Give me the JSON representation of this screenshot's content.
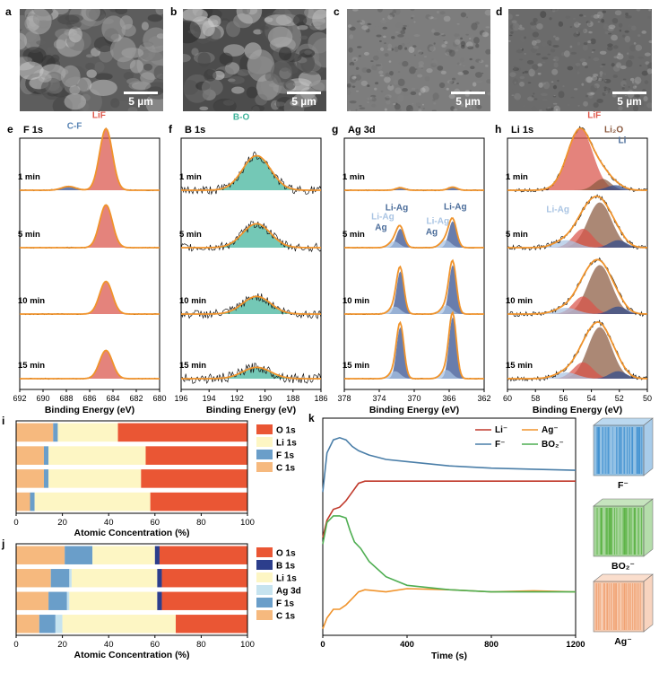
{
  "panel_letters": [
    "a",
    "b",
    "c",
    "d",
    "e",
    "f",
    "g",
    "h",
    "i",
    "j",
    "k"
  ],
  "sem": {
    "scale_text": "5 µm",
    "panels": [
      {
        "id": "a",
        "tone": "#5d5d5d",
        "texture": "dense"
      },
      {
        "id": "b",
        "tone": "#4c4c4c",
        "texture": "rough"
      },
      {
        "id": "c",
        "tone": "#7d7d7d",
        "texture": "smooth"
      },
      {
        "id": "d",
        "tone": "#6b6b6b",
        "texture": "smooth"
      }
    ]
  },
  "xps": {
    "times": [
      "1 min",
      "5 min",
      "10 min",
      "15 min"
    ],
    "xlabel": "Binding Energy (eV)",
    "colors": {
      "envelope": "#f0932b",
      "raw": "#111111",
      "red": "#d9534a",
      "navy": "#2f4b8c",
      "teal": "#3fb39a",
      "brown": "#8b5a40",
      "lightblue": "#a9c4e3"
    },
    "panels": [
      {
        "id": "F 1s",
        "xlim": [
          692,
          680
        ],
        "ticks": [
          692,
          690,
          688,
          686,
          684,
          682,
          680
        ],
        "annotations": [
          {
            "text": "LiF",
            "color": "#e0594c",
            "x": 685.2,
            "row": 0,
            "dy": -2
          },
          {
            "text": "C-F",
            "color": "#5b86b5",
            "x": 687.3,
            "row": 0,
            "dy": 10
          }
        ],
        "rows": [
          {
            "peaks": [
              {
                "center": 684.6,
                "height": 0.98,
                "width": 0.55,
                "color": "red"
              },
              {
                "center": 687.8,
                "height": 0.06,
                "width": 0.6,
                "color": "navy"
              }
            ],
            "noise": 0.01
          },
          {
            "peaks": [
              {
                "center": 684.6,
                "height": 0.68,
                "width": 0.55,
                "color": "red"
              }
            ],
            "noise": 0.01
          },
          {
            "peaks": [
              {
                "center": 684.6,
                "height": 0.52,
                "width": 0.55,
                "color": "red"
              }
            ],
            "noise": 0.01
          },
          {
            "peaks": [
              {
                "center": 684.6,
                "height": 0.45,
                "width": 0.55,
                "color": "red"
              }
            ],
            "noise": 0.01
          }
        ]
      },
      {
        "id": "B 1s",
        "xlim": [
          196,
          186
        ],
        "ticks": [
          196,
          194,
          192,
          190,
          188,
          186
        ],
        "annotations": [
          {
            "text": "B-O",
            "color": "#3fb39a",
            "x": 191.7,
            "row": 0,
            "dy": 0
          }
        ],
        "rows": [
          {
            "peaks": [
              {
                "center": 190.6,
                "height": 0.55,
                "width": 1.0,
                "color": "teal"
              }
            ],
            "noise": 0.07
          },
          {
            "peaks": [
              {
                "center": 190.6,
                "height": 0.38,
                "width": 1.0,
                "color": "teal"
              }
            ],
            "noise": 0.07
          },
          {
            "peaks": [
              {
                "center": 190.6,
                "height": 0.28,
                "width": 1.0,
                "color": "teal"
              }
            ],
            "noise": 0.07
          },
          {
            "peaks": [
              {
                "center": 190.6,
                "height": 0.18,
                "width": 1.0,
                "color": "teal"
              }
            ],
            "noise": 0.08
          }
        ]
      },
      {
        "id": "Ag 3d",
        "xlim": [
          378,
          362
        ],
        "ticks": [
          378,
          374,
          370,
          366,
          362
        ],
        "annotations": [
          {
            "text": "Li-Ag",
            "color": "#4a6c9a",
            "x": 372.0,
            "row": 1,
            "dy": -2
          },
          {
            "text": "Li-Ag",
            "color": "#a9c4e3",
            "x": 373.6,
            "row": 1,
            "dy": 8
          },
          {
            "text": "Ag",
            "color": "#4a6c9a",
            "x": 373.8,
            "row": 1,
            "dy": 20
          },
          {
            "text": "Ag",
            "color": "#4a6c9a",
            "x": 368.0,
            "row": 1,
            "dy": 25
          },
          {
            "text": "Li-Ag",
            "color": "#a9c4e3",
            "x": 367.3,
            "row": 1,
            "dy": 13
          },
          {
            "text": "Li-Ag",
            "color": "#4a6c9a",
            "x": 365.3,
            "row": 1,
            "dy": -3
          }
        ],
        "rows": [
          {
            "peaks": [
              {
                "center": 371.6,
                "height": 0.04,
                "width": 0.5,
                "color": "navy"
              },
              {
                "center": 365.6,
                "height": 0.05,
                "width": 0.5,
                "color": "navy"
              }
            ],
            "noise": 0.01
          },
          {
            "peaks": [
              {
                "center": 371.6,
                "height": 0.3,
                "width": 0.45,
                "color": "navy"
              },
              {
                "center": 372.3,
                "height": 0.1,
                "width": 0.6,
                "color": "lightblue"
              },
              {
                "center": 365.6,
                "height": 0.42,
                "width": 0.45,
                "color": "navy"
              },
              {
                "center": 366.4,
                "height": 0.12,
                "width": 0.6,
                "color": "lightblue"
              }
            ],
            "noise": 0.01
          },
          {
            "peaks": [
              {
                "center": 371.6,
                "height": 0.68,
                "width": 0.42,
                "color": "navy"
              },
              {
                "center": 372.2,
                "height": 0.12,
                "width": 0.6,
                "color": "lightblue"
              },
              {
                "center": 365.6,
                "height": 0.78,
                "width": 0.42,
                "color": "navy"
              },
              {
                "center": 366.3,
                "height": 0.14,
                "width": 0.6,
                "color": "lightblue"
              }
            ],
            "noise": 0.01
          },
          {
            "peaks": [
              {
                "center": 371.6,
                "height": 0.82,
                "width": 0.42,
                "color": "navy"
              },
              {
                "center": 372.2,
                "height": 0.12,
                "width": 0.6,
                "color": "lightblue"
              },
              {
                "center": 365.6,
                "height": 0.98,
                "width": 0.42,
                "color": "navy"
              },
              {
                "center": 366.3,
                "height": 0.14,
                "width": 0.6,
                "color": "lightblue"
              }
            ],
            "noise": 0.01
          }
        ]
      },
      {
        "id": "Li 1s",
        "xlim": [
          60,
          50
        ],
        "ticks": [
          60,
          58,
          56,
          54,
          52,
          50
        ],
        "annotations": [
          {
            "text": "LiF",
            "color": "#e0594c",
            "x": 53.8,
            "row": 0,
            "dy": -2
          },
          {
            "text": "Li₂O",
            "color": "#8b5a40",
            "x": 52.4,
            "row": 0,
            "dy": 14
          },
          {
            "text": "Li",
            "color": "#4a6c9a",
            "x": 51.8,
            "row": 0,
            "dy": 26
          },
          {
            "text": "Li-Ag",
            "color": "#a9c4e3",
            "x": 56.4,
            "row": 1,
            "dy": 0
          }
        ],
        "rows": [
          {
            "peaks": [
              {
                "center": 54.8,
                "height": 0.98,
                "width": 0.9,
                "color": "red"
              },
              {
                "center": 53.2,
                "height": 0.18,
                "width": 0.6,
                "color": "brown"
              },
              {
                "center": 52.3,
                "height": 0.08,
                "width": 0.6,
                "color": "navy"
              }
            ],
            "noise": 0.03
          },
          {
            "peaks": [
              {
                "center": 53.4,
                "height": 0.72,
                "width": 0.85,
                "color": "brown"
              },
              {
                "center": 54.6,
                "height": 0.3,
                "width": 0.7,
                "color": "red"
              },
              {
                "center": 52.1,
                "height": 0.12,
                "width": 0.6,
                "color": "navy"
              },
              {
                "center": 55.8,
                "height": 0.12,
                "width": 0.8,
                "color": "lightblue"
              }
            ],
            "noise": 0.04
          },
          {
            "peaks": [
              {
                "center": 53.4,
                "height": 0.78,
                "width": 0.85,
                "color": "brown"
              },
              {
                "center": 54.6,
                "height": 0.28,
                "width": 0.7,
                "color": "red"
              },
              {
                "center": 52.1,
                "height": 0.12,
                "width": 0.6,
                "color": "navy"
              },
              {
                "center": 55.8,
                "height": 0.1,
                "width": 0.8,
                "color": "lightblue"
              }
            ],
            "noise": 0.04
          },
          {
            "peaks": [
              {
                "center": 53.4,
                "height": 0.82,
                "width": 0.85,
                "color": "brown"
              },
              {
                "center": 54.6,
                "height": 0.26,
                "width": 0.7,
                "color": "red"
              },
              {
                "center": 52.1,
                "height": 0.12,
                "width": 0.6,
                "color": "navy"
              },
              {
                "center": 55.8,
                "height": 0.1,
                "width": 0.8,
                "color": "lightblue"
              }
            ],
            "noise": 0.04
          }
        ]
      }
    ]
  },
  "chart_data": [
    {
      "type": "bar",
      "panel": "i",
      "orientation": "horizontal",
      "stacked": true,
      "xlabel": "Atomic Concentration (%)",
      "xlim": [
        0,
        100
      ],
      "ticks": [
        0,
        20,
        40,
        60,
        80,
        100
      ],
      "legend": [
        "O 1s",
        "Li 1s",
        "F 1s",
        "C 1s"
      ],
      "stack_order": [
        "C 1s",
        "F 1s",
        "Li 1s",
        "O 1s"
      ],
      "colors": {
        "C 1s": "#f6b97e",
        "F 1s": "#6a9ec9",
        "Li 1s": "#fdf6c4",
        "O 1s": "#ea5634"
      },
      "series": [
        {
          "name": "C 1s",
          "values": [
            16,
            12,
            12,
            6
          ]
        },
        {
          "name": "F 1s",
          "values": [
            2,
            2,
            2,
            2
          ]
        },
        {
          "name": "Li 1s",
          "values": [
            26,
            42,
            40,
            50
          ]
        },
        {
          "name": "O 1s",
          "values": [
            56,
            44,
            46,
            42
          ]
        }
      ]
    },
    {
      "type": "bar",
      "panel": "j",
      "orientation": "horizontal",
      "stacked": true,
      "xlabel": "Atomic Concentration (%)",
      "xlim": [
        0,
        100
      ],
      "ticks": [
        0,
        20,
        40,
        60,
        80,
        100
      ],
      "legend": [
        "O 1s",
        "B 1s",
        "Li 1s",
        "Ag 3d",
        "F 1s",
        "C 1s"
      ],
      "stack_order": [
        "C 1s",
        "F 1s",
        "Ag 3d",
        "Li 1s",
        "B 1s",
        "O 1s"
      ],
      "colors": {
        "C 1s": "#f6b97e",
        "F 1s": "#6a9ec9",
        "Ag 3d": "#c6e3ef",
        "Li 1s": "#fdf6c4",
        "B 1s": "#2c3e8c",
        "O 1s": "#ea5634"
      },
      "series": [
        {
          "name": "C 1s",
          "values": [
            21,
            15,
            14,
            10
          ]
        },
        {
          "name": "F 1s",
          "values": [
            12,
            8,
            8,
            7
          ]
        },
        {
          "name": "Ag 3d",
          "values": [
            0,
            1,
            1,
            3
          ]
        },
        {
          "name": "Li 1s",
          "values": [
            27,
            37,
            38,
            49
          ]
        },
        {
          "name": "B 1s",
          "values": [
            2,
            2,
            2,
            0
          ]
        },
        {
          "name": "O 1s",
          "values": [
            38,
            37,
            37,
            31
          ]
        }
      ]
    },
    {
      "type": "line",
      "panel": "k",
      "xlabel": "Time (s)",
      "xlim": [
        0,
        1200
      ],
      "ylim": [
        0,
        1
      ],
      "xticks": [
        0,
        400,
        800,
        1200
      ],
      "legend_position": "top-right",
      "series": [
        {
          "name": "Li⁻",
          "color": "#c0392b",
          "x": [
            0,
            20,
            50,
            80,
            110,
            140,
            170,
            200,
            300,
            500,
            800,
            1200
          ],
          "y": [
            0.45,
            0.53,
            0.58,
            0.59,
            0.62,
            0.66,
            0.7,
            0.71,
            0.71,
            0.71,
            0.71,
            0.71
          ]
        },
        {
          "name": "F⁻",
          "color": "#4a7ea8",
          "x": [
            0,
            20,
            50,
            80,
            110,
            140,
            170,
            220,
            300,
            400,
            600,
            800,
            1000,
            1200
          ],
          "y": [
            0.66,
            0.84,
            0.9,
            0.91,
            0.9,
            0.87,
            0.85,
            0.83,
            0.81,
            0.8,
            0.78,
            0.77,
            0.765,
            0.76
          ]
        },
        {
          "name": "Ag⁻",
          "color": "#f0932b",
          "x": [
            0,
            20,
            50,
            80,
            110,
            140,
            170,
            200,
            300,
            400,
            600,
            800,
            1000,
            1200
          ],
          "y": [
            0.03,
            0.08,
            0.12,
            0.12,
            0.14,
            0.17,
            0.2,
            0.21,
            0.2,
            0.215,
            0.21,
            0.2,
            0.205,
            0.2
          ]
        },
        {
          "name": "BO₂⁻",
          "color": "#4fae52",
          "x": [
            0,
            20,
            50,
            80,
            110,
            130,
            150,
            180,
            220,
            300,
            400,
            600,
            800,
            1000,
            1200
          ],
          "y": [
            0.42,
            0.52,
            0.55,
            0.55,
            0.54,
            0.48,
            0.43,
            0.4,
            0.34,
            0.27,
            0.23,
            0.21,
            0.2,
            0.2,
            0.2
          ]
        }
      ],
      "tof_labels": [
        "F⁻",
        "BO₂⁻",
        "Ag⁻"
      ]
    }
  ]
}
